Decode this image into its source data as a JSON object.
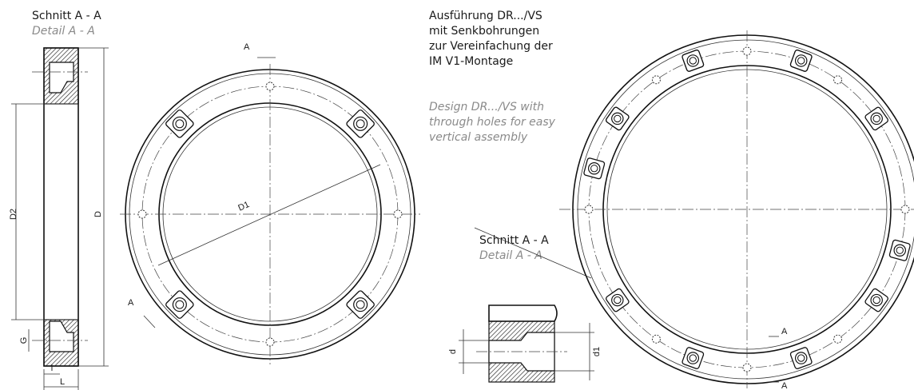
{
  "section_left": {
    "title": "Schnitt A - A",
    "subtitle": "Detail A - A",
    "dim_d2": "D2",
    "dim_d": "D",
    "dim_g": "G",
    "dim_l_small": "l",
    "dim_l": "L"
  },
  "ring_left": {
    "section_top": "A",
    "section_bottom": "A",
    "diameter": "D1"
  },
  "description": {
    "de": [
      "Ausführung DR.../VS",
      "mit Senkbohrungen",
      "zur Vereinfachung der",
      "IM V1-Montage"
    ],
    "en": [
      "Design DR.../VS with",
      "through holes for easy",
      "vertical assembly"
    ]
  },
  "detail_right": {
    "title": "Schnitt A - A",
    "subtitle": "Detail A - A",
    "dim_d": "d",
    "dim_d1": "d1"
  },
  "ring_right": {
    "section_top": "A",
    "section_bottom": "A"
  }
}
